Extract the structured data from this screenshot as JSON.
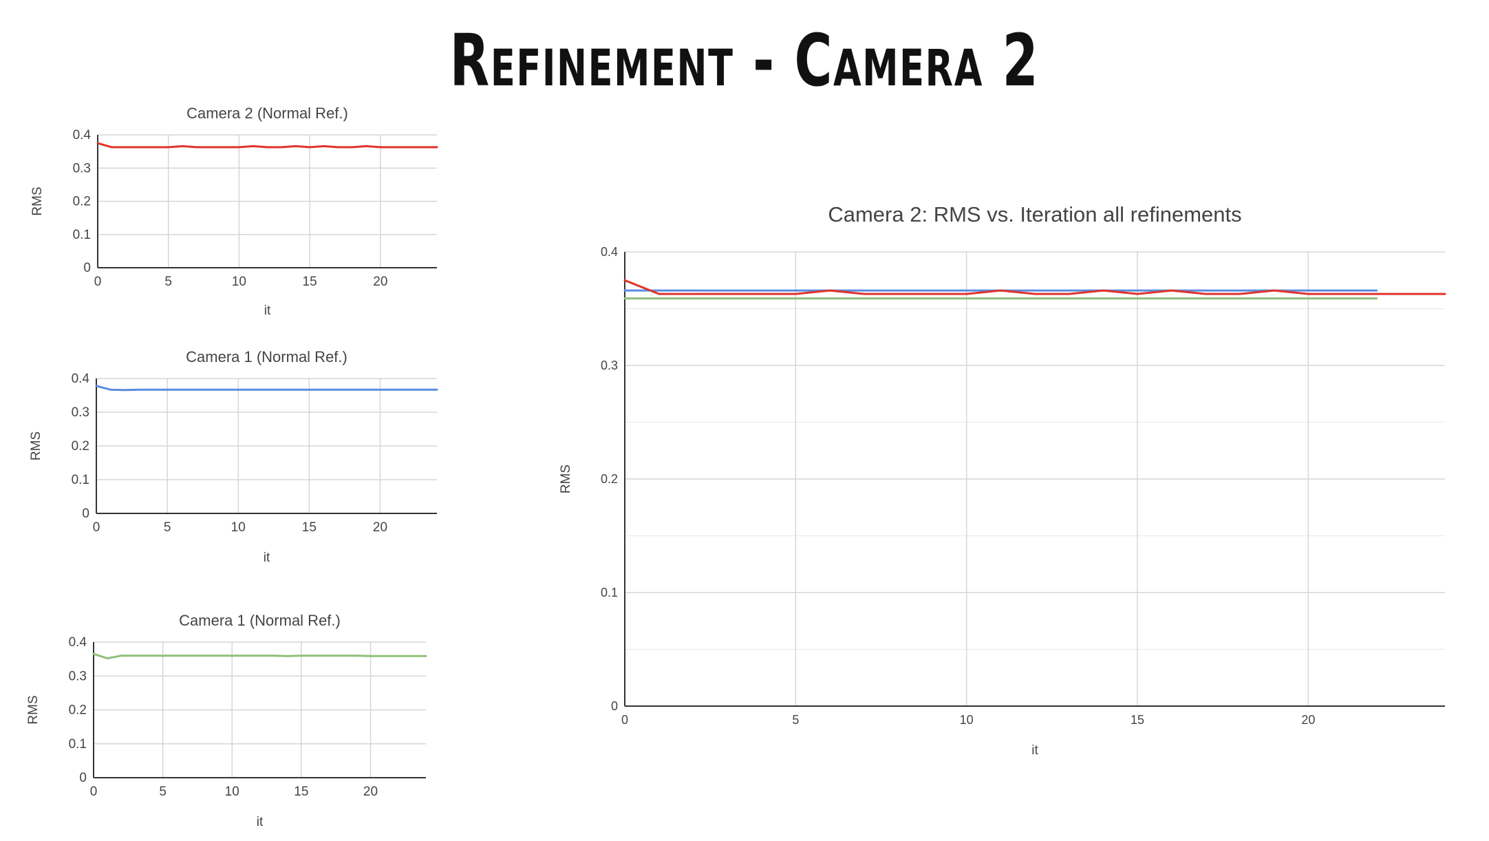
{
  "slide": {
    "title": "Refinement - Camera 2"
  },
  "colors": {
    "red": "#e0342b",
    "blue": "#5b8be0",
    "green": "#8fc07a",
    "grid": "#d6d6d6",
    "axis": "#333333"
  },
  "chart_data": [
    {
      "type": "line",
      "title": "Camera 2 (Normal Ref.)",
      "xlabel": "it",
      "ylabel": "RMS",
      "xlim": [
        0,
        24
      ],
      "ylim": [
        0,
        0.4
      ],
      "xticks": [
        "0",
        "5",
        "10",
        "15",
        "20"
      ],
      "yticks": [
        "0",
        "0.1",
        "0.2",
        "0.3",
        "0.4"
      ],
      "series": [
        {
          "color": "#e0342b",
          "x": [
            0,
            1,
            2,
            3,
            4,
            5,
            6,
            7,
            8,
            9,
            10,
            11,
            12,
            13,
            14,
            15,
            16,
            17,
            18,
            19,
            20,
            21,
            22,
            23,
            24
          ],
          "y": [
            0.375,
            0.363,
            0.363,
            0.363,
            0.363,
            0.363,
            0.366,
            0.363,
            0.363,
            0.363,
            0.363,
            0.366,
            0.363,
            0.363,
            0.366,
            0.363,
            0.366,
            0.363,
            0.363,
            0.366,
            0.363,
            0.363,
            0.363,
            0.363,
            0.363
          ]
        }
      ]
    },
    {
      "type": "line",
      "title": "Camera 1 (Normal Ref.)",
      "xlabel": "it",
      "ylabel": "RMS",
      "xlim": [
        0,
        24
      ],
      "ylim": [
        0,
        0.4
      ],
      "xticks": [
        "0",
        "5",
        "10",
        "15",
        "20"
      ],
      "yticks": [
        "0",
        "0.1",
        "0.2",
        "0.3",
        "0.4"
      ],
      "series": [
        {
          "color": "#5b8be0",
          "x": [
            0,
            1,
            2,
            3,
            4,
            5,
            6,
            7,
            8,
            9,
            10,
            11,
            12,
            13,
            14,
            15,
            16,
            17,
            18,
            19,
            20,
            21,
            22,
            23,
            24
          ],
          "y": [
            0.378,
            0.367,
            0.366,
            0.367,
            0.367,
            0.367,
            0.367,
            0.367,
            0.367,
            0.367,
            0.367,
            0.367,
            0.367,
            0.367,
            0.367,
            0.367,
            0.367,
            0.367,
            0.367,
            0.367,
            0.367,
            0.367,
            0.367,
            0.367,
            0.367
          ]
        }
      ]
    },
    {
      "type": "line",
      "title": "Camera 1 (Normal Ref.)",
      "xlabel": "it",
      "ylabel": "RMS",
      "xlim": [
        0,
        24
      ],
      "ylim": [
        0,
        0.4
      ],
      "xticks": [
        "0",
        "5",
        "10",
        "15",
        "20"
      ],
      "yticks": [
        "0",
        "0.1",
        "0.2",
        "0.3",
        "0.4"
      ],
      "series": [
        {
          "color": "#8fc07a",
          "x": [
            0,
            1,
            2,
            3,
            4,
            5,
            6,
            7,
            8,
            9,
            10,
            11,
            12,
            13,
            14,
            15,
            16,
            17,
            18,
            19,
            20,
            21,
            22,
            23,
            24
          ],
          "y": [
            0.365,
            0.352,
            0.36,
            0.36,
            0.36,
            0.36,
            0.36,
            0.36,
            0.36,
            0.36,
            0.36,
            0.36,
            0.36,
            0.36,
            0.359,
            0.36,
            0.36,
            0.36,
            0.36,
            0.36,
            0.359,
            0.359,
            0.359,
            0.359,
            0.359
          ]
        }
      ]
    },
    {
      "type": "line",
      "title": "Camera 2: RMS vs. Iteration all refinements",
      "xlabel": "it",
      "ylabel": "RMS",
      "xlim": [
        0,
        24
      ],
      "ylim": [
        0,
        0.4
      ],
      "xticks": [
        "0",
        "5",
        "10",
        "15",
        "20"
      ],
      "yticks": [
        "0",
        "0.1",
        "0.2",
        "0.3",
        "0.4"
      ],
      "grid": true,
      "series": [
        {
          "color": "#5b8be0",
          "x": [
            0,
            1,
            2,
            3,
            4,
            5,
            6,
            7,
            8,
            9,
            10,
            11,
            12,
            13,
            14,
            15,
            16,
            17,
            18,
            19,
            20,
            21,
            22
          ],
          "y": [
            0.366,
            0.366,
            0.366,
            0.366,
            0.366,
            0.366,
            0.366,
            0.366,
            0.366,
            0.366,
            0.366,
            0.366,
            0.366,
            0.366,
            0.366,
            0.366,
            0.366,
            0.366,
            0.366,
            0.366,
            0.366,
            0.366,
            0.366
          ]
        },
        {
          "color": "#8fc07a",
          "x": [
            0,
            1,
            2,
            3,
            4,
            5,
            6,
            7,
            8,
            9,
            10,
            11,
            12,
            13,
            14,
            15,
            16,
            17,
            18,
            19,
            20,
            21,
            22
          ],
          "y": [
            0.359,
            0.359,
            0.359,
            0.359,
            0.359,
            0.359,
            0.359,
            0.359,
            0.359,
            0.359,
            0.359,
            0.359,
            0.359,
            0.359,
            0.359,
            0.359,
            0.359,
            0.359,
            0.359,
            0.359,
            0.359,
            0.359,
            0.359
          ]
        },
        {
          "color": "#e0342b",
          "x": [
            0,
            1,
            2,
            3,
            4,
            5,
            6,
            7,
            8,
            9,
            10,
            11,
            12,
            13,
            14,
            15,
            16,
            17,
            18,
            19,
            20,
            21,
            22,
            23,
            24
          ],
          "y": [
            0.375,
            0.363,
            0.363,
            0.363,
            0.363,
            0.363,
            0.366,
            0.363,
            0.363,
            0.363,
            0.363,
            0.366,
            0.363,
            0.363,
            0.366,
            0.363,
            0.366,
            0.363,
            0.363,
            0.366,
            0.363,
            0.363,
            0.363,
            0.363,
            0.363
          ]
        }
      ]
    }
  ]
}
